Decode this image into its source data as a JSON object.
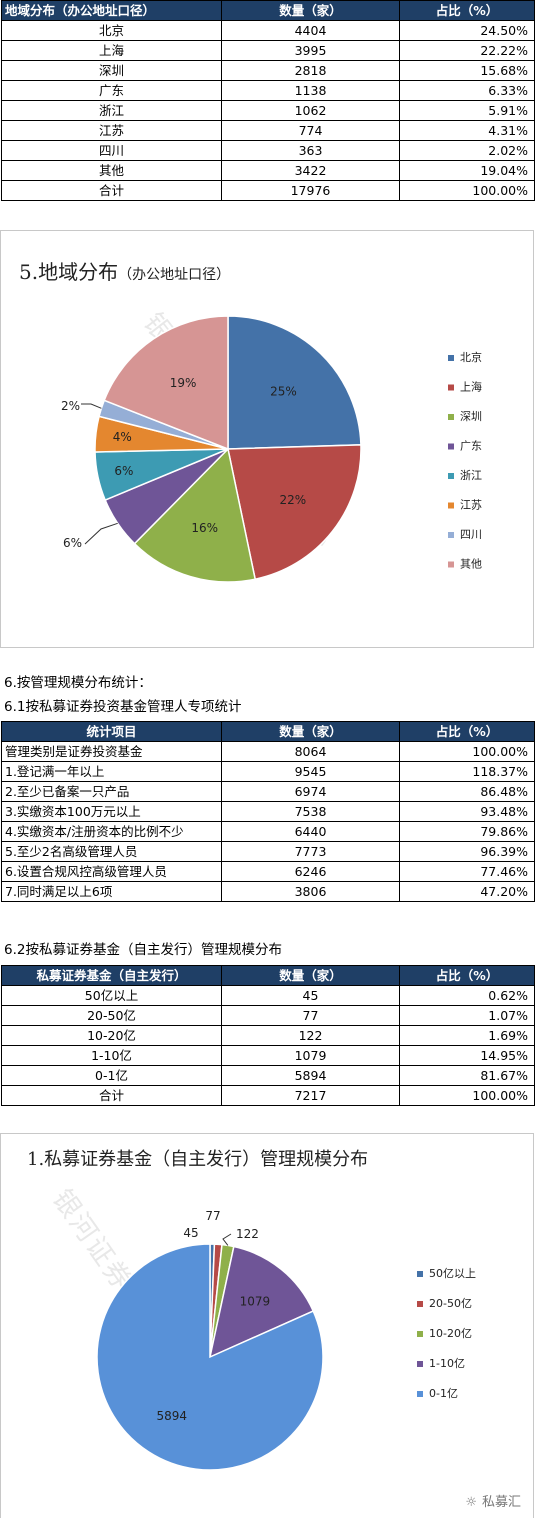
{
  "table1": {
    "headers": [
      "地域分布（办公地址口径）",
      "数量（家）",
      "占比（%）"
    ],
    "rows": [
      [
        "北京",
        "4404",
        "24.50%"
      ],
      [
        "上海",
        "3995",
        "22.22%"
      ],
      [
        "深圳",
        "2818",
        "15.68%"
      ],
      [
        "广东",
        "1138",
        "6.33%"
      ],
      [
        "浙江",
        "1062",
        "5.91%"
      ],
      [
        "江苏",
        "774",
        "4.31%"
      ],
      [
        "四川",
        "363",
        "2.02%"
      ],
      [
        "其他",
        "3422",
        "19.04%"
      ],
      [
        "合计",
        "17976",
        "100.00%"
      ]
    ]
  },
  "chart1": {
    "title_main": "5.地域分布",
    "title_sub": "（办公地址口径）",
    "watermark": "银河证券基金研究中心"
  },
  "heading1": "6.按管理规模分布统计：",
  "heading2": "6.1按私募证券投资基金管理人专项统计",
  "table2": {
    "headers": [
      "统计项目",
      "数量（家）",
      "占比（%）"
    ],
    "rows": [
      [
        "管理类别是证券投资基金",
        "8064",
        "100.00%"
      ],
      [
        "1.登记满一年以上",
        "9545",
        "118.37%"
      ],
      [
        "2.至少已备案一只产品",
        "6974",
        "86.48%"
      ],
      [
        "3.实缴资本100万元以上",
        "7538",
        "93.48%"
      ],
      [
        "4.实缴资本/注册资本的比例不少",
        "6440",
        "79.86%"
      ],
      [
        "5.至少2名高级管理人员",
        "7773",
        "96.39%"
      ],
      [
        "6.设置合规风控高级管理人员",
        "6246",
        "77.46%"
      ],
      [
        "7.同时满足以上6项",
        "3806",
        "47.20%"
      ]
    ]
  },
  "heading3": "6.2按私募证券基金（自主发行）管理规模分布",
  "table3": {
    "headers": [
      "私募证券基金（自主发行）",
      "数量（家）",
      "占比（%）"
    ],
    "rows": [
      [
        "50亿以上",
        "45",
        "0.62%"
      ],
      [
        "20-50亿",
        "77",
        "1.07%"
      ],
      [
        "10-20亿",
        "122",
        "1.69%"
      ],
      [
        "1-10亿",
        "1079",
        "14.95%"
      ],
      [
        "0-1亿",
        "5894",
        "81.67%"
      ],
      [
        "合计",
        "7217",
        "100.00%"
      ]
    ]
  },
  "chart2": {
    "title": "1.私募证券基金（自主发行）管理规模分布",
    "watermark": "银河证券基金研究中心",
    "signature": "私募汇"
  },
  "chart_data": [
    {
      "type": "pie",
      "categories": [
        "北京",
        "上海",
        "深圳",
        "广东",
        "浙江",
        "江苏",
        "四川",
        "其他"
      ],
      "values": [
        4404,
        3995,
        2818,
        1138,
        1062,
        774,
        363,
        3422
      ],
      "labels": [
        "25%",
        "22%",
        "16%",
        "6%",
        "6%",
        "4%",
        "2%",
        "19%"
      ],
      "colors": [
        "#4472a8",
        "#b64a47",
        "#8fb04a",
        "#6f5597",
        "#3d9bb3",
        "#e4872f",
        "#95aed6",
        "#d69594"
      ],
      "legend": "right"
    },
    {
      "type": "pie",
      "categories": [
        "50亿以上",
        "20-50亿",
        "10-20亿",
        "1-10亿",
        "0-1亿"
      ],
      "values": [
        45,
        77,
        122,
        1079,
        5894
      ],
      "labels": [
        "45",
        "77",
        "122",
        "1079",
        "5894"
      ],
      "colors": [
        "#4472a8",
        "#b64a47",
        "#8fb04a",
        "#6f5597",
        "#5891d8"
      ],
      "legend": "right"
    }
  ]
}
